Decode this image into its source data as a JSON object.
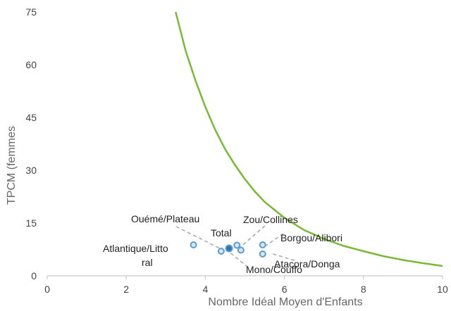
{
  "chart_data": {
    "type": "scatter",
    "xlabel": "Nombre Idéal Moyen d'Enfants",
    "ylabel": "TPCM (femmes",
    "xlim": [
      0,
      10
    ],
    "ylim": [
      0,
      75
    ],
    "x_ticks": [
      0,
      2,
      4,
      6,
      8,
      10
    ],
    "y_ticks": [
      0,
      15,
      30,
      45,
      60,
      75
    ],
    "grid": false,
    "curve": {
      "color": "#77bb33",
      "x": [
        3.25,
        3.5,
        3.75,
        4.0,
        4.25,
        4.5,
        4.75,
        5.0,
        5.25,
        5.5,
        6.0,
        6.5,
        7.0,
        7.5,
        8.0,
        8.5,
        9.0,
        9.5,
        10.0
      ],
      "y": [
        75,
        64,
        55.5,
        48,
        41.5,
        36,
        31.5,
        27.5,
        24,
        21,
        16.5,
        13,
        10.5,
        8.5,
        7,
        5.6,
        4.5,
        3.6,
        2.8
      ]
    },
    "points": [
      {
        "label": "Atlantique/Littoral",
        "x": 3.7,
        "y": 8.8
      },
      {
        "label": "Ouémé/Plateau",
        "x": 4.4,
        "y": 7.0
      },
      {
        "label": "Total",
        "x": 4.6,
        "y": 7.8
      },
      {
        "label": "Zou/Collines",
        "x": 4.8,
        "y": 8.7
      },
      {
        "label": "Mono/Couffo",
        "x": 4.9,
        "y": 7.3
      },
      {
        "label": "Borgou/Alibori",
        "x": 5.45,
        "y": 8.8
      },
      {
        "label": "Atacora/Donga",
        "x": 5.45,
        "y": 6.2
      }
    ],
    "label_texts": {
      "atlantique_1": "Atlantique/Litto",
      "atlantique_2": "ral",
      "oueme": "Ouémé/Plateau",
      "total": "Total",
      "zou": "Zou/Collines",
      "borgou": "Borgou/Alibori",
      "atacora": "Atacora/Donga",
      "mono": "Mono/Couffo"
    },
    "colors": {
      "point_stroke": "#5b9bd5",
      "point_fill": "#d6e6f5",
      "total_fill": "#2e75b6",
      "leader": "#a6a6a6",
      "axis": "#bfbfbf"
    }
  }
}
